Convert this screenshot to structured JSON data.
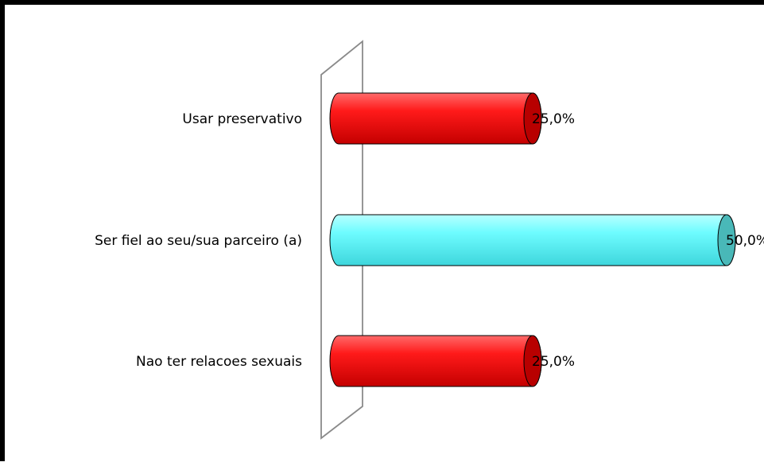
{
  "chart_data": {
    "type": "bar",
    "orientation": "horizontal",
    "style": "3d-cylinder",
    "categories": [
      "Usar preservativo",
      "Ser fiel ao seu/sua parceiro (a)",
      "Nao ter relacoes sexuais"
    ],
    "values": [
      25.0,
      50.0,
      25.0
    ],
    "value_labels": [
      "25,0%",
      "50,0%",
      "25,0%"
    ],
    "bar_colors": [
      "#ff0000",
      "#66ffff",
      "#ff0000"
    ],
    "xlim": [
      0,
      50
    ],
    "grid": false,
    "legend": "none",
    "title": "",
    "xlabel": "",
    "ylabel": ""
  }
}
